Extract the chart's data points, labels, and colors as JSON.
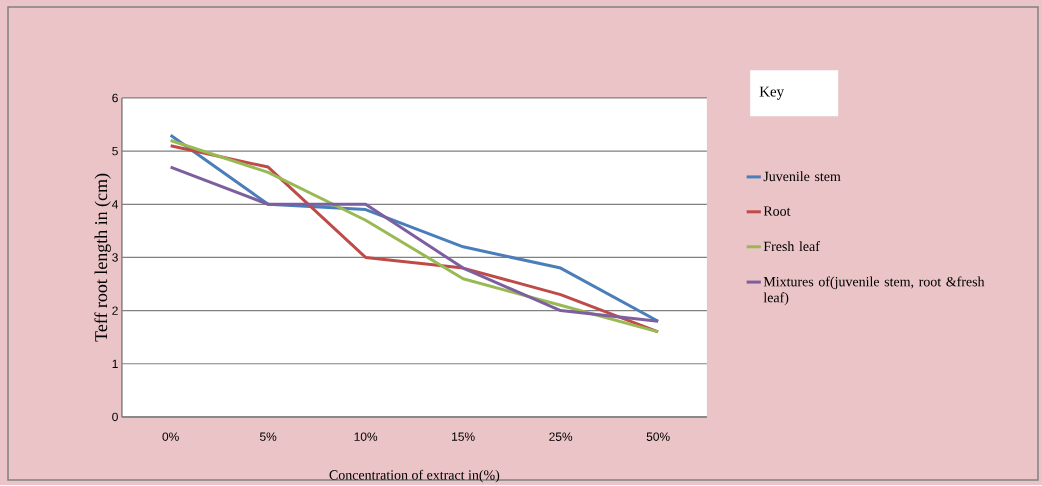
{
  "chart_data": {
    "type": "line",
    "xlabel": "Concentration of extract in(%)",
    "ylabel": "Teff root length in (cm)",
    "legend_title": "Key",
    "categories": [
      "0%",
      "5%",
      "10%",
      "15%",
      "25%",
      "50%"
    ],
    "series": [
      {
        "name": "Juvenile stem",
        "color": "#4a7ebb",
        "values": [
          5.3,
          4.0,
          3.9,
          3.2,
          2.8,
          1.8
        ]
      },
      {
        "name": "Root",
        "color": "#be4b48",
        "values": [
          5.1,
          4.7,
          3.0,
          2.8,
          2.3,
          1.6
        ]
      },
      {
        "name": "Fresh leaf",
        "color": "#98b954",
        "values": [
          5.2,
          4.6,
          3.7,
          2.6,
          2.1,
          1.6
        ]
      },
      {
        "name": "Mixtures of(juvenile stem, root &fresh leaf)",
        "color": "#7d5fa0",
        "values": [
          4.7,
          4.0,
          4.0,
          2.8,
          2.0,
          1.8
        ]
      }
    ],
    "ylim": [
      0,
      6
    ],
    "yticks": [
      0,
      1,
      2,
      3,
      4,
      5,
      6
    ],
    "grid": "y",
    "legend": "right",
    "marker": "none",
    "line_style": "solid"
  }
}
